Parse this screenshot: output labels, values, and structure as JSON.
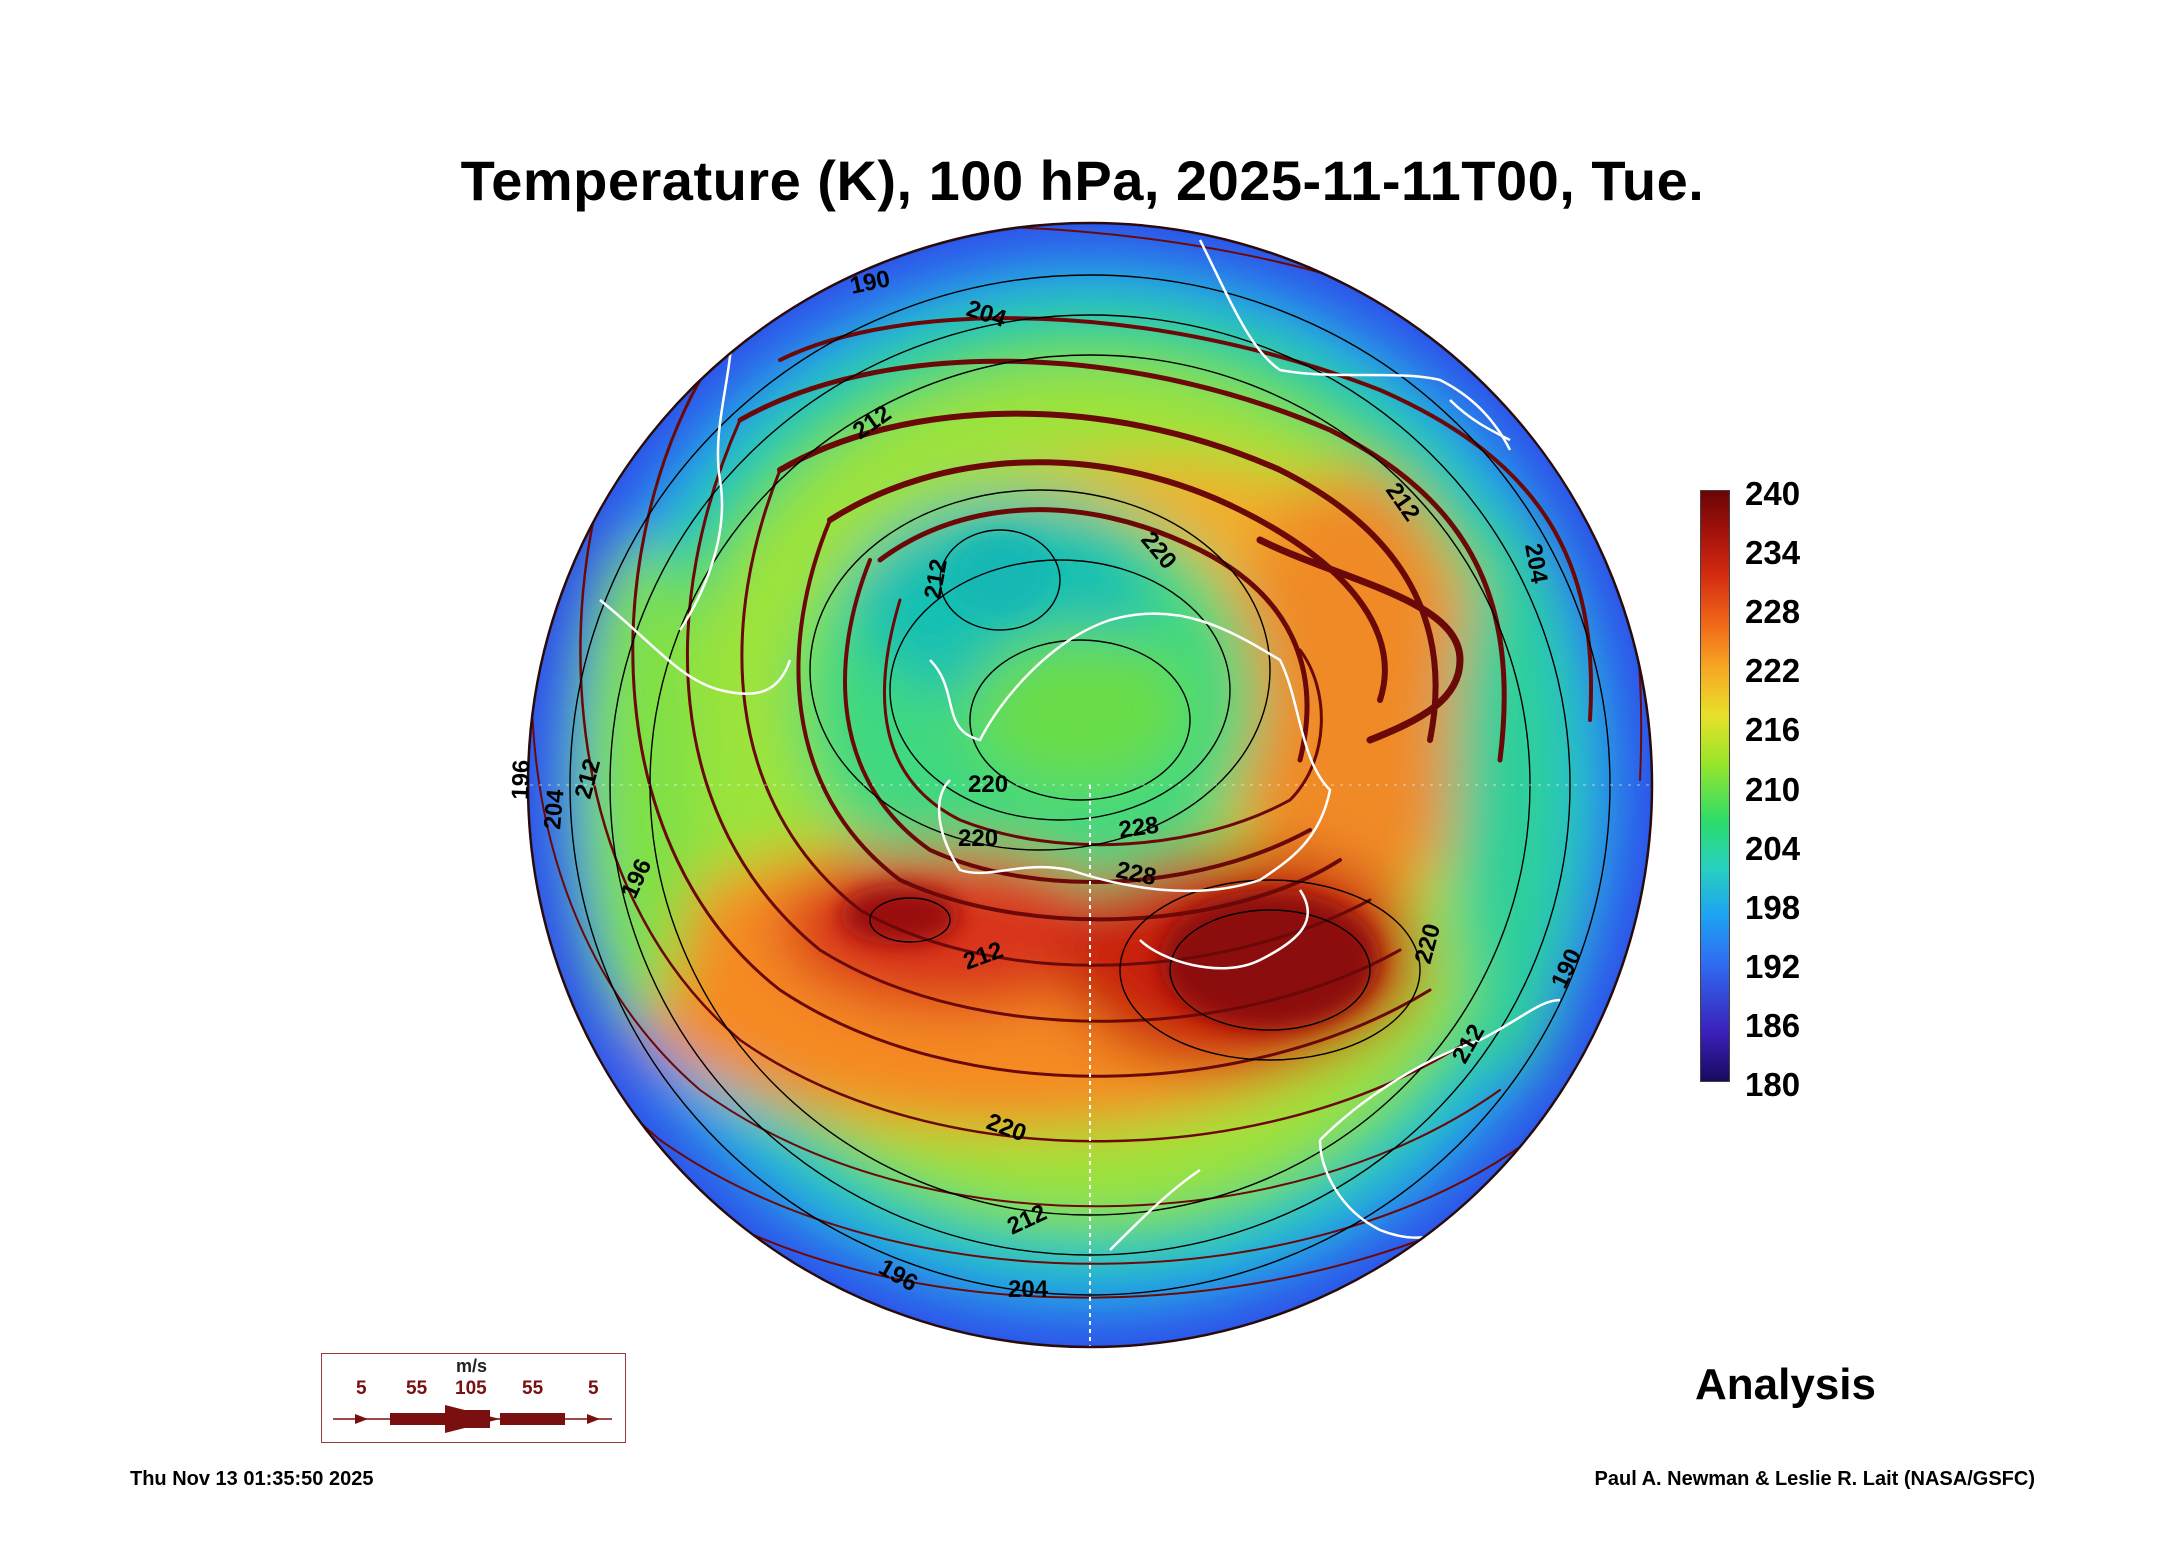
{
  "title": "Temperature (K), 100 hPa, 2025-11-11T00, Tue.",
  "colorbar": {
    "labels": [
      "240",
      "234",
      "228",
      "222",
      "216",
      "210",
      "204",
      "198",
      "192",
      "186",
      "180"
    ]
  },
  "contour_labels": [
    "190",
    "204",
    "212",
    "212",
    "204",
    "220",
    "212",
    "220",
    "220",
    "228",
    "228",
    "220",
    "212",
    "196",
    "204",
    "212",
    "220",
    "212",
    "196",
    "204",
    "212",
    "196",
    "190"
  ],
  "wind_legend": {
    "unit": "m/s",
    "values": [
      "5",
      "55",
      "105",
      "55",
      "5"
    ]
  },
  "status": "Analysis",
  "timestamp": "Thu Nov 13 01:35:50 2025",
  "credit": "Paul A. Newman & Leslie R. Lait (NASA/GSFC)",
  "colors": {
    "streamline": "#6b0808",
    "contour": "#000000",
    "coastline": "#ffffff",
    "hot": "#8b0000",
    "cold": "#1a0a5e"
  }
}
